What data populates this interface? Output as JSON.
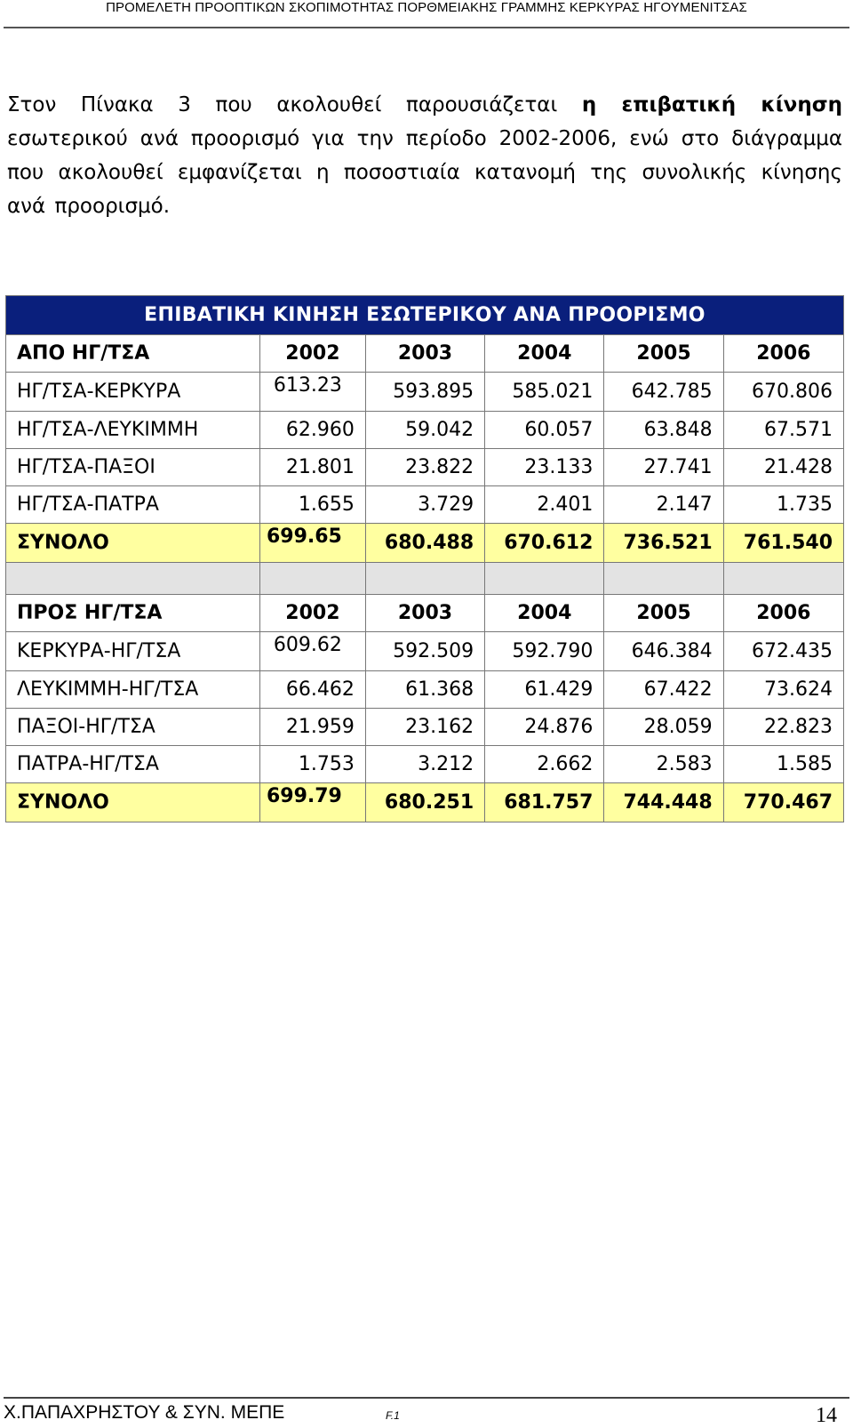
{
  "header": {
    "title": "ΠΡΟΜΕΛΕΤΗ ΠΡΟΟΠΤΙΚΩΝ ΣΚΟΠΙΜΟΤΗΤΑΣ ΠΟΡΘΜΕΙΑΚΗΣ ΓΡΑΜΜΗΣ ΚΕΡΚΥΡΑΣ ΗΓΟΥΜΕΝΙΤΣΑΣ"
  },
  "intro": {
    "part1": "Στον Πίνακα 3 που ακολουθεί παρουσιάζεται ",
    "bold": "η επιβατική κίνηση",
    "part2": " εσωτερικού ανά προορισμό για την περίοδο 2002-2006, ενώ στο διάγραμμα που ακολουθεί εμφανίζεται η ποσοστιαία κατανομή της συνολικής κίνησης ανά προορισμό."
  },
  "table": {
    "title": "ΕΠΙΒΑΤΙΚΗ ΚΙΝΗΣΗ ΕΣΩΤΕΡΙΚΟΥ ΑΝΑ ΠΡΟΟΡΙΣΜΟ",
    "from": {
      "header": [
        "ΑΠΟ ΗΓ/ΤΣΑ",
        "2002",
        "2003",
        "2004",
        "2005",
        "2006"
      ],
      "rows": [
        [
          "ΗΓ/ΤΣΑ-ΚΕΡΚΥΡΑ",
          "613.23",
          "593.895",
          "585.021",
          "642.785",
          "670.806"
        ],
        [
          "ΗΓ/ΤΣΑ-ΛΕΥΚΙΜΜΗ",
          "62.960",
          "59.042",
          "60.057",
          "63.848",
          "67.571"
        ],
        [
          "ΗΓ/ΤΣΑ-ΠΑΞΟΙ",
          "21.801",
          "23.822",
          "23.133",
          "27.741",
          "21.428"
        ],
        [
          "ΗΓ/ΤΣΑ-ΠΑΤΡΑ",
          "1.655",
          "3.729",
          "2.401",
          "2.147",
          "1.735"
        ]
      ],
      "total": [
        "ΣΥΝΟΛΟ",
        "699.65",
        "680.488",
        "670.612",
        "736.521",
        "761.540"
      ]
    },
    "to": {
      "header": [
        "ΠΡΟΣ ΗΓ/ΤΣΑ",
        "2002",
        "2003",
        "2004",
        "2005",
        "2006"
      ],
      "rows": [
        [
          "ΚΕΡΚΥΡΑ-ΗΓ/ΤΣΑ",
          "609.62",
          "592.509",
          "592.790",
          "646.384",
          "672.435"
        ],
        [
          "ΛΕΥΚΙΜΜΗ-ΗΓ/ΤΣΑ",
          "66.462",
          "61.368",
          "61.429",
          "67.422",
          "73.624"
        ],
        [
          "ΠΑΞΟΙ-ΗΓ/ΤΣΑ",
          "21.959",
          "23.162",
          "24.876",
          "28.059",
          "22.823"
        ],
        [
          "ΠΑΤΡΑ-ΗΓ/ΤΣΑ",
          "1.753",
          "3.212",
          "2.662",
          "2.583",
          "1.585"
        ]
      ],
      "total": [
        "ΣΥΝΟΛΟ",
        "699.79",
        "680.251",
        "681.757",
        "744.448",
        "770.467"
      ]
    }
  },
  "footer": {
    "left": "Χ.ΠΑΠΑΧΡΗΣΤΟΥ & ΣΥΝ. ΜΕΠΕ",
    "mid": "F.1",
    "page": "14"
  }
}
